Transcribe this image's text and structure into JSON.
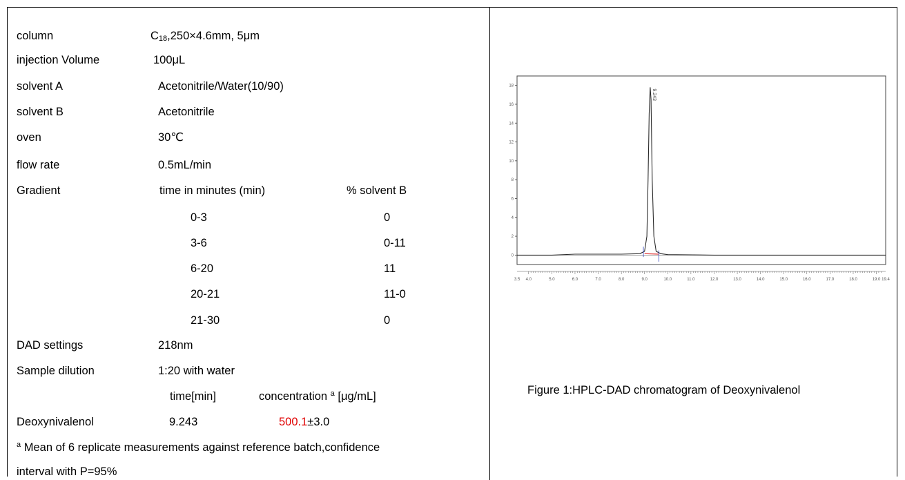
{
  "conditions": {
    "column": {
      "label": "column",
      "value_base": "C",
      "value_sub": "18",
      "value_rest": ",250×4.6mm, 5μm"
    },
    "injection": {
      "label": "injection Volume",
      "value": "100μL"
    },
    "solvent_a": {
      "label": "solvent A",
      "value": "Acetonitrile/Water(10/90)"
    },
    "solvent_b": {
      "label": "solvent B",
      "value": "Acetonitrile"
    },
    "oven": {
      "label": "oven",
      "value": "30℃"
    },
    "flow_rate": {
      "label": "flow rate",
      "value": "0.5mL/min"
    }
  },
  "gradient": {
    "label": "Gradient",
    "col_time": "time in minutes (min)",
    "col_solvent": "% solvent B",
    "rows": [
      {
        "time": "0-3",
        "solvent_b": "0"
      },
      {
        "time": "3-6",
        "solvent_b": "0-11"
      },
      {
        "time": "6-20",
        "solvent_b": "11"
      },
      {
        "time": "20-21",
        "solvent_b": "11-0"
      },
      {
        "time": "21-30",
        "solvent_b": "0"
      }
    ]
  },
  "dad": {
    "label": "DAD settings",
    "value": "218nm"
  },
  "dilution": {
    "label": "Sample dilution",
    "value": "1:20 with water"
  },
  "results": {
    "col_time": "time[min]",
    "col_conc": "concentration",
    "col_conc_sup": "a",
    "col_conc_unit": "[μg/mL]",
    "analyte": "Deoxynivalenol",
    "time": "9.243",
    "conc_value": "500.1",
    "conc_error": "±3.0"
  },
  "footnote": {
    "marker": "a",
    "line1": "Mean of 6 replicate measurements against reference batch,confidence",
    "line2": "interval with P=95%"
  },
  "chart_data": {
    "type": "line",
    "x_ticks": [
      "3.5",
      "4.0",
      "5.0",
      "6.0",
      "7.0",
      "8.0",
      "9.0",
      "10.0",
      "11.0",
      "12.0",
      "13.0",
      "14.0",
      "15.0",
      "16.0",
      "17.0",
      "18.0",
      "19.0",
      "19.4"
    ],
    "y_ticks": [
      "0",
      "2",
      "4",
      "6",
      "8",
      "10",
      "12",
      "14",
      "16",
      "18"
    ],
    "xlim": [
      3.5,
      19.4
    ],
    "ylim": [
      -1,
      19
    ],
    "peak_label": "9.243",
    "series": [
      {
        "x": [
          3.5,
          5.0,
          6.0,
          8.0,
          8.8,
          9.0,
          9.1,
          9.15,
          9.2,
          9.243,
          9.28,
          9.33,
          9.4,
          9.5,
          9.7,
          10.0,
          12.0,
          15.0,
          19.4
        ],
        "y": [
          0.0,
          0.0,
          0.1,
          0.1,
          0.15,
          0.4,
          2.0,
          8.0,
          15.0,
          17.8,
          16.5,
          8.0,
          2.0,
          0.4,
          0.15,
          0.05,
          0.0,
          0.0,
          0.0
        ]
      }
    ],
    "colors": {
      "line": "#2a2a2a",
      "baseline": "#e03030",
      "marker": "#3040c0"
    }
  },
  "caption": "Figure 1:HPLC-DAD chromatogram of Deoxynivalenol"
}
